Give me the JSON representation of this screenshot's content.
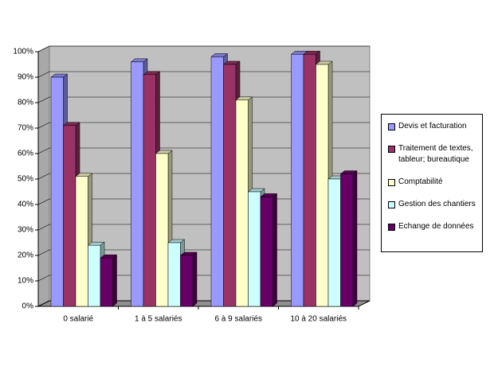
{
  "chart_data": {
    "type": "bar3d",
    "categories": [
      "0 salarié",
      "1 à 5 salariés",
      "6 à 9 salariés",
      "10 à 20 salariés"
    ],
    "series": [
      {
        "name": "Devis et facturation",
        "color": "#9999ff",
        "values": [
          90,
          96,
          98,
          99
        ]
      },
      {
        "name": "Traitement de textes, tableur; bureautique",
        "color": "#993366",
        "values": [
          71,
          91,
          95,
          99
        ]
      },
      {
        "name": "Comptabilité",
        "color": "#ffffcc",
        "values": [
          51,
          60,
          81,
          95
        ]
      },
      {
        "name": "Gestion des chantiers",
        "color": "#ccffff",
        "values": [
          24,
          25,
          45,
          50
        ]
      },
      {
        "name": "Echange de données",
        "color": "#660066",
        "values": [
          19,
          20,
          43,
          52
        ]
      }
    ],
    "ylim": [
      0,
      100
    ],
    "yticks": [
      {
        "value": 0,
        "label": "0%"
      },
      {
        "value": 10,
        "label": "10%"
      },
      {
        "value": 20,
        "label": "20%"
      },
      {
        "value": 30,
        "label": "30%"
      },
      {
        "value": 40,
        "label": "40%"
      },
      {
        "value": 50,
        "label": "50%"
      },
      {
        "value": 60,
        "label": "60%"
      },
      {
        "value": 70,
        "label": "70%"
      },
      {
        "value": 80,
        "label": "80%"
      },
      {
        "value": 90,
        "label": "90%"
      },
      {
        "value": 100,
        "label": "100%"
      }
    ],
    "grid": true
  }
}
